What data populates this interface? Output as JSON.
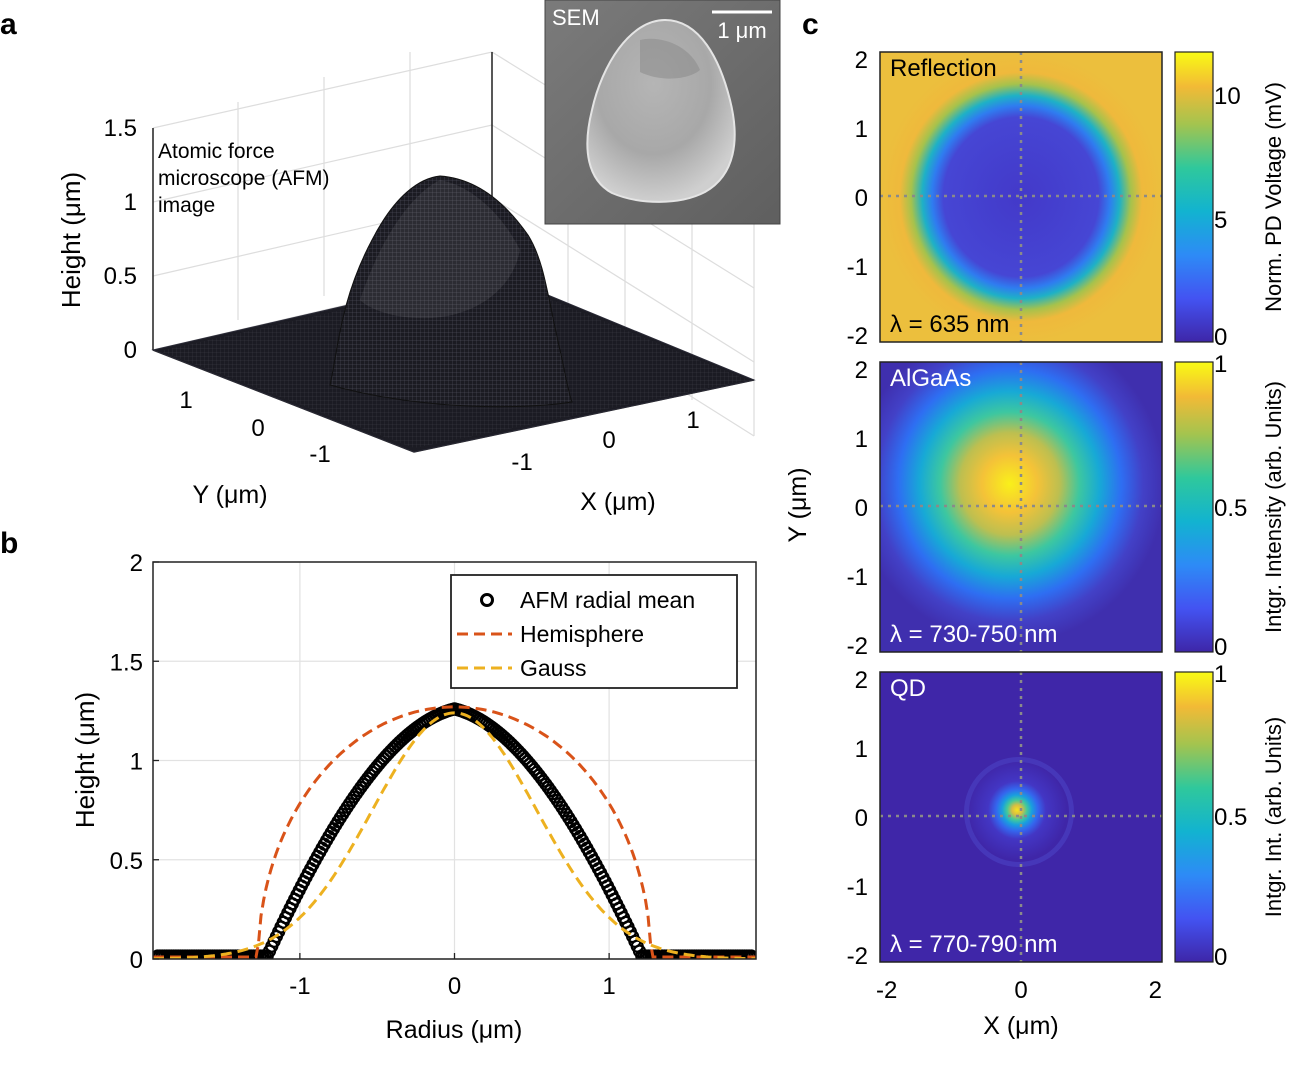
{
  "panels": {
    "a": "a",
    "b": "b",
    "c": "c"
  },
  "panel_a": {
    "annotation_lines": [
      "Atomic force",
      "microscope (AFM)",
      "image"
    ],
    "z_ticks": [
      "0",
      "0.5",
      "1",
      "1.5"
    ],
    "y_ticks": [
      "1",
      "0",
      "-1"
    ],
    "x_ticks": [
      "-1",
      "0",
      "1"
    ],
    "zlabel": "Height (μm)",
    "ylabel": "Y (μm)",
    "xlabel": "X (μm)",
    "inset_label": "SEM",
    "scalebar_label": "1 μm"
  },
  "chart_data": [
    {
      "panel": "a",
      "type": "surface",
      "title": "Atomic force microscope (AFM) image",
      "x_range": [
        -1.7,
        1.7
      ],
      "y_range": [
        -1.7,
        1.7
      ],
      "zlim": [
        0,
        1.5
      ],
      "peak_height": 1.25,
      "base_radius": 1.2
    },
    {
      "panel": "b",
      "type": "line",
      "xlabel": "Radius (μm)",
      "ylabel": "Height (μm)",
      "xlim": [
        -1.95,
        1.95
      ],
      "ylim": [
        0,
        2
      ],
      "xticks": [
        -1,
        0,
        1
      ],
      "xtick_labels": [
        "-1",
        "0",
        "1"
      ],
      "yticks": [
        0,
        0.5,
        1,
        1.5,
        2
      ],
      "ytick_labels": [
        "0",
        "0.5",
        "1",
        "1.5",
        "2"
      ],
      "grid": true,
      "legend_position": "top-right",
      "series": [
        {
          "name": "AFM radial mean",
          "style": "circles",
          "color": "#000000",
          "x_range": [
            -1.92,
            1.92
          ],
          "peak": 1.26,
          "base_radius": 1.22
        },
        {
          "name": "Hemisphere",
          "style": "dashed",
          "color": "#d95319",
          "radius": 1.27,
          "peak": 1.27
        },
        {
          "name": "Gauss",
          "style": "dashed",
          "color": "#edb120",
          "peak": 1.24,
          "sigma": 0.53,
          "x_range": [
            -1.95,
            1.95
          ]
        }
      ]
    },
    {
      "panel": "c",
      "type": "heatmap",
      "x_label": "X (μm)",
      "y_label": "Y (μm)",
      "xlim": [
        -2.1,
        2.1
      ],
      "ylim": [
        -2.1,
        2.1
      ],
      "xtick_labels": [
        "-2",
        "0",
        "2"
      ],
      "ytick_labels": [
        "-2",
        "-1",
        "0",
        "1",
        "2"
      ],
      "maps": [
        {
          "label": "Reflection",
          "wavelength": "λ = 635 nm",
          "colorbar_label": "Norm. PD Voltage (mV)",
          "colorbar_ticks": [
            "0",
            "5",
            "10"
          ],
          "cmin": 0,
          "cmax": 11.5,
          "pattern": "dark_disk",
          "disk_radius": 1.4
        },
        {
          "label": "AlGaAs",
          "wavelength": "λ = 730-750 nm",
          "colorbar_label": "Intgr. Intensity (arb. Units)",
          "colorbar_ticks": [
            "0",
            "0.5",
            "1"
          ],
          "cmin": 0,
          "cmax": 1,
          "pattern": "bright_disk",
          "disk_radius": 1.45
        },
        {
          "label": "QD",
          "wavelength": "λ = 770-790 nm",
          "colorbar_label": "Intgr. Int. (arb. Units)",
          "colorbar_ticks": [
            "0",
            "0.5",
            "1"
          ],
          "cmin": 0,
          "cmax": 1,
          "pattern": "spot",
          "spot_sigma": 0.3
        }
      ]
    }
  ]
}
